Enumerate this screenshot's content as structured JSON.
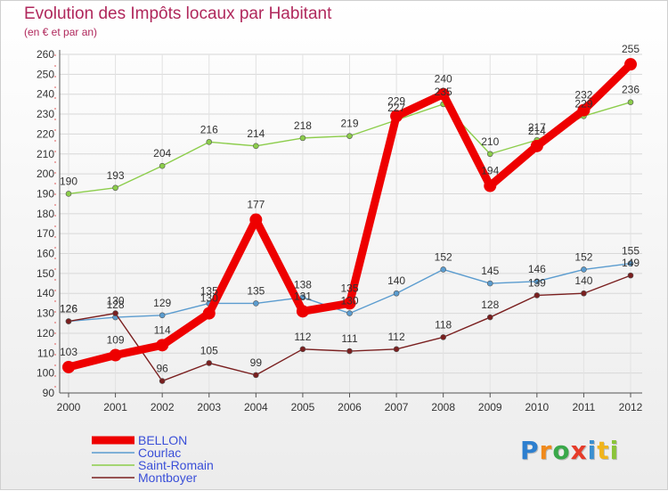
{
  "title": "Evolution des Impôts locaux par Habitant",
  "subtitle": "(en € et par an)",
  "logo": {
    "letters": [
      "P",
      "r",
      "o",
      "x",
      "i",
      "t",
      "i"
    ],
    "colors": [
      "#2d7fcf",
      "#f08a1c",
      "#3aa84a",
      "#e63c2a",
      "#3a8fd0",
      "#f0b41c",
      "#8bc43a"
    ]
  },
  "chart_data": {
    "type": "line",
    "title": "Evolution des Impôts locaux par Habitant",
    "subtitle": "(en € et par an)",
    "xlabel": "",
    "ylabel": "",
    "categories": [
      "2000",
      "2001",
      "2002",
      "2003",
      "2004",
      "2005",
      "2006",
      "2007",
      "2008",
      "2009",
      "2010",
      "2011",
      "2012"
    ],
    "ylim": [
      90,
      260
    ],
    "yticks": [
      90,
      100,
      110,
      120,
      130,
      140,
      150,
      160,
      170,
      180,
      190,
      200,
      210,
      220,
      230,
      240,
      250,
      260
    ],
    "grid": true,
    "legend_position": "bottom-left",
    "series": [
      {
        "name": "Saint-Romain",
        "color": "#8ccd4b",
        "values": [
          190,
          193,
          204,
          216,
          214,
          218,
          219,
          227,
          235,
          210,
          217,
          229,
          236
        ]
      },
      {
        "name": "Courlac",
        "color": "#5b9ccf",
        "values": [
          126,
          128,
          129,
          135,
          135,
          138,
          130,
          140,
          152,
          145,
          146,
          152,
          155
        ]
      },
      {
        "name": "Montboyer",
        "color": "#7a1f1f",
        "values": [
          126,
          130,
          96,
          105,
          99,
          112,
          111,
          112,
          118,
          128,
          139,
          140,
          149
        ]
      },
      {
        "name": "BELLON",
        "color": "#ee0000",
        "values": [
          103,
          109,
          114,
          130,
          177,
          131,
          135,
          229,
          240,
          194,
          214,
          232,
          255
        ]
      }
    ],
    "legend": [
      {
        "name": "BELLON",
        "color": "#ee0000",
        "text_color": "#3a4fd8"
      },
      {
        "name": "Courlac",
        "color": "#5b9ccf",
        "text_color": "#3a4fd8"
      },
      {
        "name": "Saint-Romain",
        "color": "#8ccd4b",
        "text_color": "#3a4fd8"
      },
      {
        "name": "Montboyer",
        "color": "#7a1f1f",
        "text_color": "#3a4fd8"
      }
    ]
  }
}
